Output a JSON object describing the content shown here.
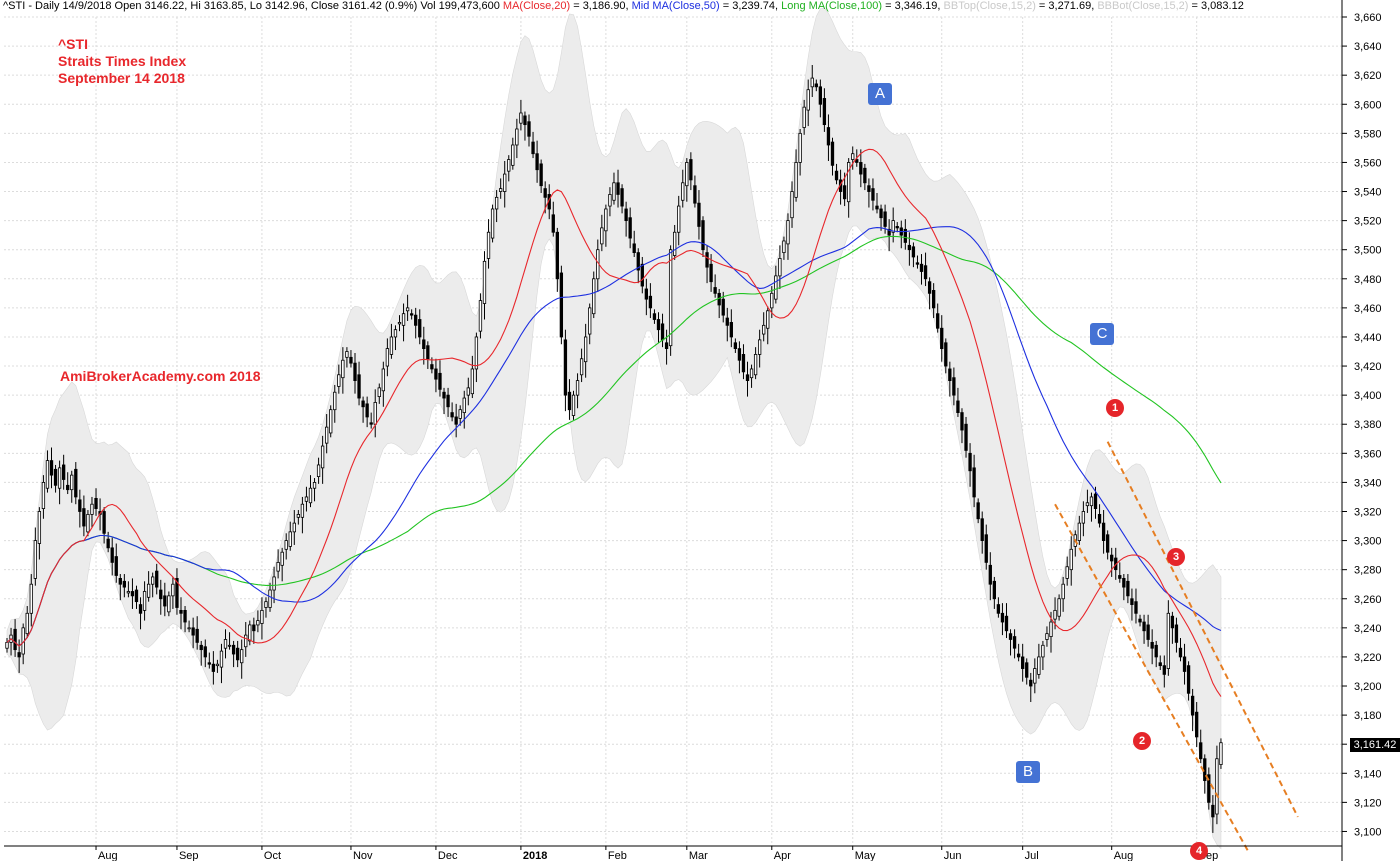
{
  "header": {
    "symbol_line": "^STI - Daily 14/9/2018 Open 3146.22, Hi 3163.85, Lo 3142.96, Close 3161.42 (0.9%) Vol 199,473,600",
    "ma20_label": "MA(Close,20)",
    "ma20_value": " = 3,186.90,",
    "ma50_label": "Mid MA(Close,50)",
    "ma50_value": " = 3,239.74,",
    "ma100_label": "Long MA(Close,100)",
    "ma100_value": " = 3,346.19,",
    "bbtop_label": "BBTop(Close,15,2)",
    "bbtop_value": " = 3,271.69,",
    "bbbot_label": "BBBot(Close,15,2)",
    "bbbot_value": " = 3,083.12"
  },
  "title": {
    "line1": "^STI",
    "line2": "Straits Times Index",
    "line3": "September 14 2018"
  },
  "watermark": "AmiBrokerAcademy.com  2018",
  "annotations": {
    "labels": [
      "A",
      "B",
      "C"
    ],
    "markers": [
      "1",
      "2",
      "3",
      "4"
    ]
  },
  "last_price_label": "3,161.42",
  "colors": {
    "ma20": "#e8272c",
    "ma50": "#1d2fe0",
    "ma100": "#22c422",
    "band_fill": "#ececec",
    "trend_lines": "#e67e22",
    "label_box": "#4472d4",
    "marker": "#e5252a"
  },
  "chart_data": {
    "type": "candlestick",
    "ylim": [
      3090,
      3660
    ],
    "y_ticks": [
      3100,
      3120,
      3140,
      3160,
      3180,
      3200,
      3220,
      3240,
      3260,
      3280,
      3300,
      3320,
      3340,
      3360,
      3380,
      3400,
      3420,
      3440,
      3460,
      3480,
      3500,
      3520,
      3540,
      3560,
      3580,
      3600,
      3620,
      3640,
      3660
    ],
    "y_tick_labels": [
      "3,100",
      "3,120",
      "3,140",
      "3,160",
      "3,180",
      "3,200",
      "3,220",
      "3,240",
      "3,260",
      "3,280",
      "3,300",
      "3,320",
      "3,340",
      "3,360",
      "3,380",
      "3,400",
      "3,420",
      "3,440",
      "3,460",
      "3,480",
      "3,500",
      "3,520",
      "3,540",
      "3,560",
      "3,580",
      "3,600",
      "3,620",
      "3,640",
      "3,660"
    ],
    "x_months": [
      "Aug",
      "Sep",
      "Oct",
      "Nov",
      "Dec",
      "2018",
      "Feb",
      "Mar",
      "Apr",
      "May",
      "Jun",
      "Jul",
      "Aug",
      "Sep"
    ],
    "month_start_bar": [
      22,
      42,
      63,
      85,
      106,
      127,
      148,
      168,
      189,
      209,
      231,
      251,
      273,
      294
    ],
    "last_close": 3161.42,
    "closes": [
      3230,
      3235,
      3225,
      3220,
      3240,
      3250,
      3270,
      3300,
      3320,
      3340,
      3355,
      3345,
      3338,
      3350,
      3342,
      3335,
      3345,
      3330,
      3320,
      3310,
      3318,
      3325,
      3322,
      3318,
      3305,
      3295,
      3285,
      3276,
      3270,
      3268,
      3265,
      3262,
      3258,
      3250,
      3265,
      3270,
      3275,
      3268,
      3260,
      3255,
      3262,
      3270,
      3254,
      3250,
      3244,
      3240,
      3235,
      3230,
      3225,
      3220,
      3215,
      3210,
      3215,
      3224,
      3232,
      3228,
      3222,
      3218,
      3225,
      3235,
      3242,
      3238,
      3245,
      3252,
      3258,
      3266,
      3275,
      3285,
      3292,
      3300,
      3306,
      3312,
      3318,
      3325,
      3330,
      3336,
      3340,
      3352,
      3365,
      3378,
      3390,
      3402,
      3414,
      3424,
      3430,
      3422,
      3410,
      3398,
      3392,
      3385,
      3380,
      3395,
      3405,
      3418,
      3432,
      3440,
      3445,
      3450,
      3456,
      3460,
      3455,
      3448,
      3440,
      3432,
      3425,
      3418,
      3411,
      3404,
      3398,
      3392,
      3385,
      3380,
      3390,
      3398,
      3405,
      3418,
      3440,
      3465,
      3492,
      3512,
      3528,
      3536,
      3542,
      3552,
      3562,
      3572,
      3583,
      3594,
      3586,
      3578,
      3566,
      3555,
      3544,
      3536,
      3528,
      3512,
      3480,
      3440,
      3400,
      3390,
      3400,
      3410,
      3425,
      3440,
      3460,
      3480,
      3500,
      3515,
      3528,
      3538,
      3546,
      3538,
      3530,
      3520,
      3508,
      3498,
      3486,
      3475,
      3466,
      3460,
      3452,
      3445,
      3438,
      3432,
      3500,
      3512,
      3530,
      3546,
      3560,
      3548,
      3532,
      3516,
      3500,
      3488,
      3478,
      3470,
      3462,
      3455,
      3448,
      3440,
      3432,
      3424,
      3416,
      3410,
      3418,
      3428,
      3438,
      3448,
      3458,
      3470,
      3482,
      3494,
      3506,
      3520,
      3540,
      3560,
      3580,
      3598,
      3610,
      3618,
      3612,
      3600,
      3586,
      3572,
      3558,
      3548,
      3540,
      3535,
      3560,
      3566,
      3560,
      3552,
      3546,
      3540,
      3534,
      3528,
      3522,
      3516,
      3510,
      3520,
      3515,
      3510,
      3505,
      3500,
      3495,
      3490,
      3485,
      3480,
      3470,
      3460,
      3446,
      3432,
      3420,
      3410,
      3400,
      3388,
      3376,
      3362,
      3348,
      3330,
      3315,
      3300,
      3285,
      3270,
      3260,
      3250,
      3244,
      3238,
      3232,
      3226,
      3220,
      3212,
      3206,
      3200,
      3212,
      3220,
      3228,
      3236,
      3244,
      3252,
      3260,
      3270,
      3282,
      3294,
      3304,
      3312,
      3320,
      3326,
      3330,
      3322,
      3312,
      3300,
      3292,
      3286,
      3280,
      3274,
      3268,
      3262,
      3256,
      3250,
      3244,
      3238,
      3232,
      3226,
      3220,
      3214,
      3208,
      3250,
      3240,
      3230,
      3220,
      3210,
      3195,
      3180,
      3165,
      3150,
      3135,
      3120,
      3110,
      3150,
      3161
    ],
    "series_legend": [
      "MA(Close,20)",
      "Mid MA(Close,50)",
      "Long MA(Close,100)",
      "BBTop(Close,15,2)",
      "BBBot(Close,15,2)"
    ],
    "ma20_end": 3186.9,
    "ma50_end": 3239.74,
    "ma100_end": 3346.19,
    "bbtop_end": 3271.69,
    "bbbot_end": 3083.12
  }
}
